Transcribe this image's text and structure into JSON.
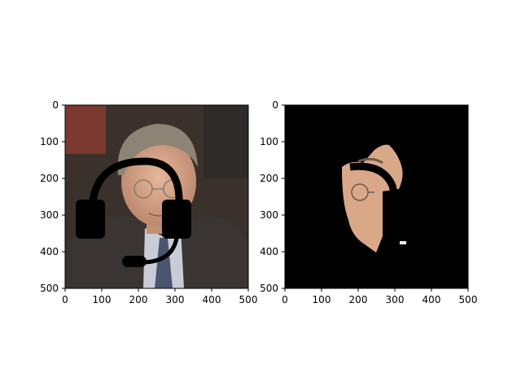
{
  "chart_data": [
    {
      "type": "image",
      "xlim": [
        0,
        500
      ],
      "ylim": [
        500,
        0
      ],
      "xticks": [
        0,
        100,
        200,
        300,
        400,
        500
      ],
      "yticks": [
        0,
        100,
        200,
        300,
        400,
        500
      ],
      "xtick_labels": [
        "0",
        "100",
        "200",
        "300",
        "400",
        "500"
      ],
      "ytick_labels": [
        "0",
        "100",
        "200",
        "300",
        "400",
        "500"
      ],
      "content": "photo-of-man-in-suit-with-black-headset-mask-overlay"
    },
    {
      "type": "image",
      "xlim": [
        0,
        500
      ],
      "ylim": [
        500,
        0
      ],
      "xticks": [
        0,
        100,
        200,
        300,
        400,
        500
      ],
      "yticks": [
        0,
        100,
        200,
        300,
        400,
        500
      ],
      "xtick_labels": [
        "0",
        "100",
        "200",
        "300",
        "400",
        "500"
      ],
      "ytick_labels": [
        "0",
        "100",
        "200",
        "300",
        "400",
        "500"
      ],
      "background": "#000000",
      "content": "segmented-face-region-on-black-background"
    }
  ],
  "colors": {
    "skin": "#d9a889",
    "hair": "#8e8476",
    "suit": "#3a3532",
    "shirt": "#c9ccd6",
    "tie": "#4a5670",
    "bg_dark": "#3b312c",
    "bg_red": "#8a3a32",
    "mask": "#000000"
  }
}
